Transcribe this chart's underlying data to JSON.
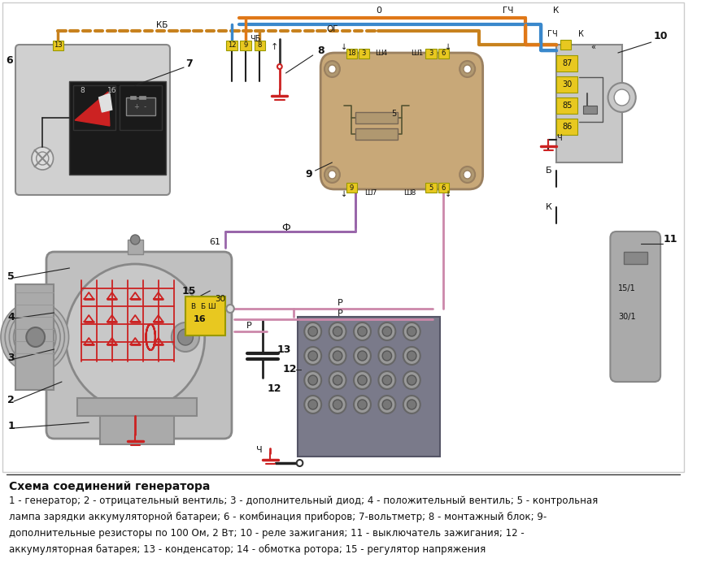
{
  "title": "Схема соединений генератора",
  "description_lines": [
    "1 - генератор; 2 - отрицательный вентиль; 3 - дополнительный диод; 4 - положительный вентиль; 5 - контрольная",
    "лампа зарядки аккумуляторной батареи; 6 - комбинация приборов; 7-вольтметр; 8 - монтажный блок; 9-",
    "дополнительные резисторы по 100 Ом, 2 Вт; 10 - реле зажигания; 11 - выключатель зажигания; 12 -",
    "аккумуляторная батарея; 13 - конденсатор; 14 - обмотка ротора; 15 - регулятор напряжения"
  ],
  "bg_color": "#ffffff",
  "title_fontsize": 10,
  "desc_fontsize": 8.5,
  "wire_brown": "#c8821e",
  "wire_blue": "#3a88cc",
  "wire_orange": "#e07818",
  "wire_purple": "#9966aa",
  "wire_pink": "#cc88aa",
  "wire_red": "#cc2222",
  "wire_black": "#222222",
  "wire_gray": "#888888",
  "color_yellow": "#e8c820",
  "color_lightgray": "#d0d0d0",
  "color_darkgray": "#555555",
  "color_beige": "#c8a878",
  "color_relay_gray": "#c8c8c8"
}
